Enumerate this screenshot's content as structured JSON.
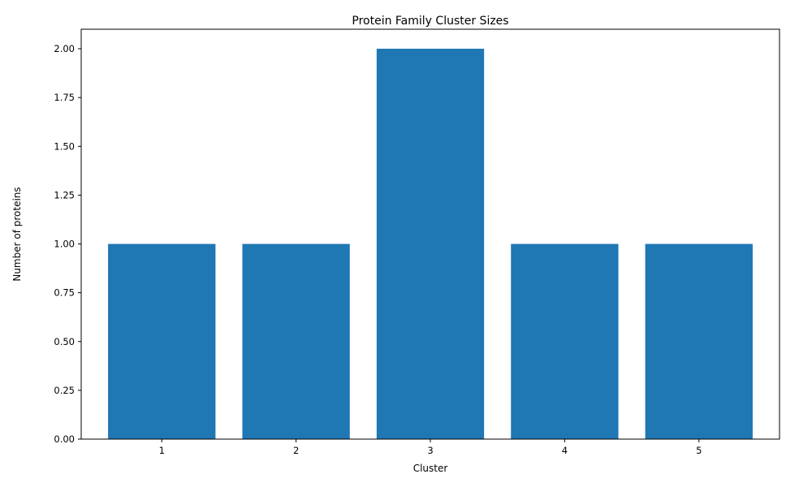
{
  "chart_data": {
    "type": "bar",
    "title": "Protein Family Cluster Sizes",
    "xlabel": "Cluster",
    "ylabel": "Number of proteins",
    "categories": [
      "1",
      "2",
      "3",
      "4",
      "5"
    ],
    "values": [
      1,
      1,
      2,
      1,
      1
    ],
    "ylim": [
      0,
      2.1
    ],
    "yticks": [
      "0.00",
      "0.25",
      "0.50",
      "0.75",
      "1.00",
      "1.25",
      "1.50",
      "1.75",
      "2.00"
    ],
    "bar_color": "#1f77b4",
    "grid": false
  }
}
